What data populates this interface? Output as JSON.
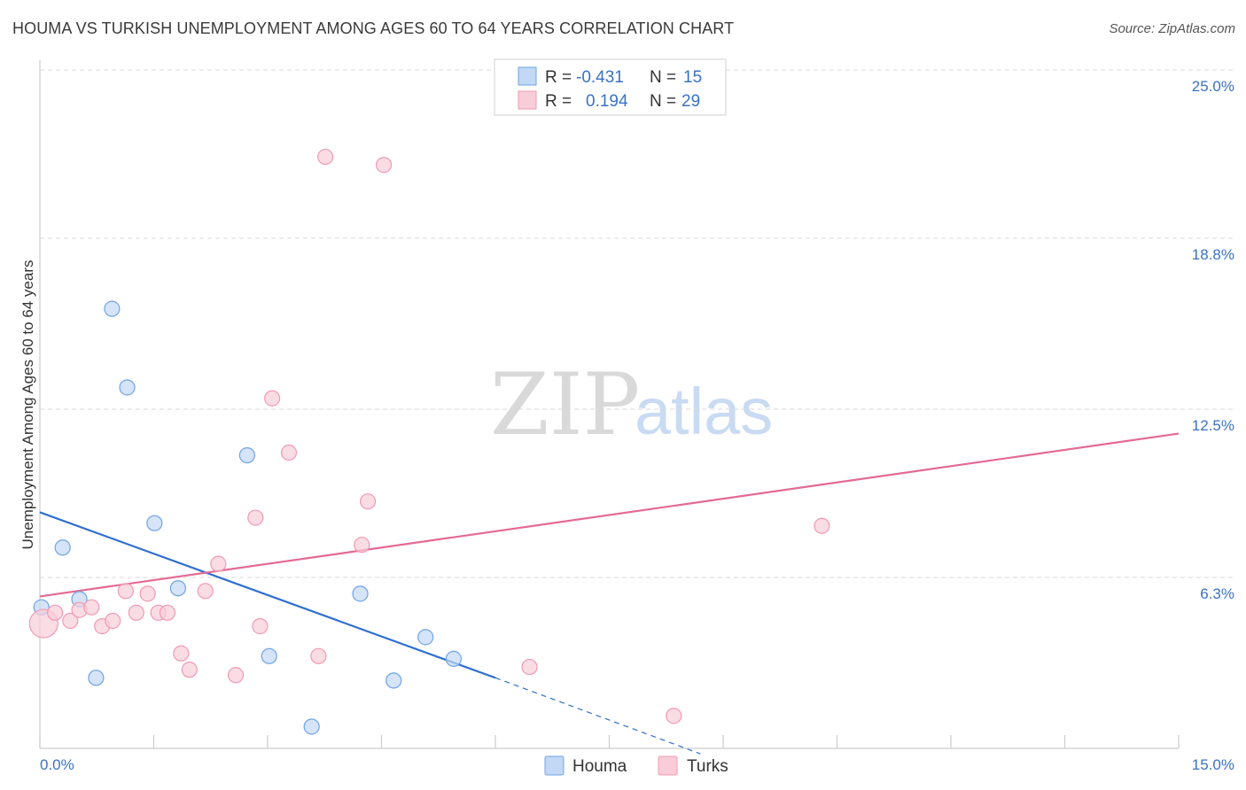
{
  "title": "HOUMA VS TURKISH UNEMPLOYMENT AMONG AGES 60 TO 64 YEARS CORRELATION CHART",
  "source": "Source: ZipAtlas.com",
  "watermark": {
    "zip": "ZIP",
    "atlas": "atlas"
  },
  "chart_data": {
    "type": "scatter",
    "xlabel": "",
    "ylabel": "Unemployment Among Ages 60 to 64 years",
    "xlim": [
      0,
      15
    ],
    "ylim": [
      0,
      25
    ],
    "x_tick_labels": {
      "min": "0.0%",
      "max": "15.0%"
    },
    "y_ticks": [
      {
        "value": 6.3,
        "label": "6.3%"
      },
      {
        "value": 12.5,
        "label": "12.5%"
      },
      {
        "value": 18.8,
        "label": "18.8%"
      },
      {
        "value": 25.0,
        "label": "25.0%"
      }
    ],
    "grid": true,
    "legend": {
      "position": "top-center",
      "rows": [
        {
          "r_label": "R =",
          "r_value": "-0.431",
          "n_label": "N =",
          "n_value": "15",
          "series": "Houma"
        },
        {
          "r_label": "R =",
          "r_value": "0.194",
          "n_label": "N =",
          "n_value": "29",
          "series": "Turks"
        }
      ]
    },
    "series": [
      {
        "name": "Houma",
        "color": "#6fa3e6",
        "fill": "#c3d8f5",
        "line_color": "#2f6fd0",
        "points": [
          {
            "x": 0.02,
            "y": 5.2
          },
          {
            "x": 0.3,
            "y": 7.4
          },
          {
            "x": 0.52,
            "y": 5.5
          },
          {
            "x": 0.74,
            "y": 2.6
          },
          {
            "x": 0.95,
            "y": 16.2
          },
          {
            "x": 1.15,
            "y": 13.3
          },
          {
            "x": 1.51,
            "y": 8.3
          },
          {
            "x": 1.82,
            "y": 5.9
          },
          {
            "x": 2.73,
            "y": 10.8
          },
          {
            "x": 3.02,
            "y": 3.4
          },
          {
            "x": 3.58,
            "y": 0.8
          },
          {
            "x": 4.22,
            "y": 5.7
          },
          {
            "x": 4.66,
            "y": 2.5
          },
          {
            "x": 5.08,
            "y": 4.1
          },
          {
            "x": 5.45,
            "y": 3.3
          }
        ],
        "trend": {
          "x0": 0,
          "y0": 8.7,
          "x1": 6.0,
          "y1": 2.6,
          "dash_to_x": 8.7,
          "dash_to_y": -0.2
        }
      },
      {
        "name": "Turks",
        "color": "#f09ab3",
        "fill": "#f8cdd9",
        "line_color": "#e46a92",
        "points": [
          {
            "x": 0.05,
            "y": 4.6,
            "size": "large"
          },
          {
            "x": 0.2,
            "y": 5.0
          },
          {
            "x": 0.4,
            "y": 4.7
          },
          {
            "x": 0.52,
            "y": 5.1
          },
          {
            "x": 0.68,
            "y": 5.2
          },
          {
            "x": 0.82,
            "y": 4.5
          },
          {
            "x": 0.96,
            "y": 4.7
          },
          {
            "x": 1.13,
            "y": 5.8
          },
          {
            "x": 1.27,
            "y": 5.0
          },
          {
            "x": 1.42,
            "y": 5.7
          },
          {
            "x": 1.56,
            "y": 5.0
          },
          {
            "x": 1.68,
            "y": 5.0
          },
          {
            "x": 1.86,
            "y": 3.5
          },
          {
            "x": 1.97,
            "y": 2.9
          },
          {
            "x": 2.18,
            "y": 5.8
          },
          {
            "x": 2.35,
            "y": 6.8
          },
          {
            "x": 2.58,
            "y": 2.7
          },
          {
            "x": 2.84,
            "y": 8.5
          },
          {
            "x": 2.9,
            "y": 4.5
          },
          {
            "x": 3.06,
            "y": 12.9
          },
          {
            "x": 3.28,
            "y": 10.9
          },
          {
            "x": 3.67,
            "y": 3.4
          },
          {
            "x": 3.76,
            "y": 21.8
          },
          {
            "x": 4.24,
            "y": 7.5
          },
          {
            "x": 4.32,
            "y": 9.1
          },
          {
            "x": 4.53,
            "y": 21.5
          },
          {
            "x": 6.45,
            "y": 3.0
          },
          {
            "x": 8.35,
            "y": 1.2
          },
          {
            "x": 10.3,
            "y": 8.2
          }
        ],
        "trend": {
          "x0": 0,
          "y0": 5.6,
          "x1": 15,
          "y1": 11.6
        }
      }
    ]
  },
  "bottom_legend": [
    {
      "label": "Houma",
      "color": "#c3d8f5",
      "border": "#6fa3e6"
    },
    {
      "label": "Turks",
      "color": "#f8cdd9",
      "border": "#f09ab3"
    }
  ]
}
